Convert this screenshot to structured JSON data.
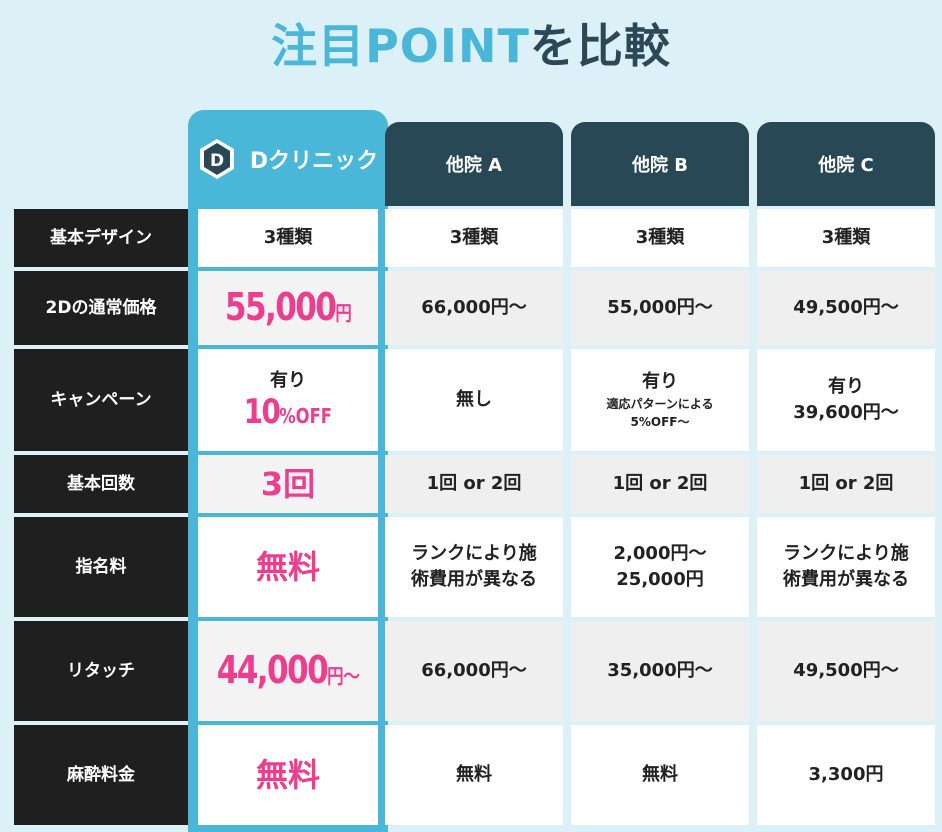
{
  "title": {
    "part1": "注目POINT",
    "part2": "を比較"
  },
  "clinics": {
    "d": {
      "name": "Dクリニック",
      "logo_letter": "D"
    },
    "a": "他院 A",
    "b": "他院 B",
    "c": "他院 C"
  },
  "rows": [
    {
      "label": "基本デザイン",
      "d": "3種類",
      "a": "3種類",
      "b": "3種類",
      "c": "3種類"
    },
    {
      "label": "2Dの通常価格",
      "d_value": "55,000",
      "d_unit": "円",
      "a": "66,000円〜",
      "b": "55,000円〜",
      "c": "49,500円〜"
    },
    {
      "label": "キャンペーン",
      "d_line1": "有り",
      "d_value": "10",
      "d_unit": "%OFF",
      "a": "無し",
      "b_line1": "有り",
      "b_line2": "適応パターンによる",
      "b_line3": "5%OFF〜",
      "c_line1": "有り",
      "c_line2": "39,600円〜"
    },
    {
      "label": "基本回数",
      "d": "3回",
      "a": "1回 or 2回",
      "b": "1回 or 2回",
      "c": "1回 or 2回"
    },
    {
      "label": "指名料",
      "d": "無料",
      "a_line1": "ランクにより施",
      "a_line2": "術費用が異なる",
      "b_line1": "2,000円〜",
      "b_line2": "25,000円",
      "c_line1": "ランクにより施",
      "c_line2": "術費用が異なる"
    },
    {
      "label": "リタッチ",
      "d_value": "44,000",
      "d_unit": "円〜",
      "a": "66,000円〜",
      "b": "35,000円〜",
      "c": "49,500円〜"
    },
    {
      "label": "麻酔料金",
      "d": "無料",
      "a": "無料",
      "b": "無料",
      "c": "3,300円"
    }
  ],
  "colors": {
    "accent": "#4ab6d8",
    "header": "#294855",
    "pink": "#ec3d8f",
    "label_bg": "#1f1f1f"
  }
}
